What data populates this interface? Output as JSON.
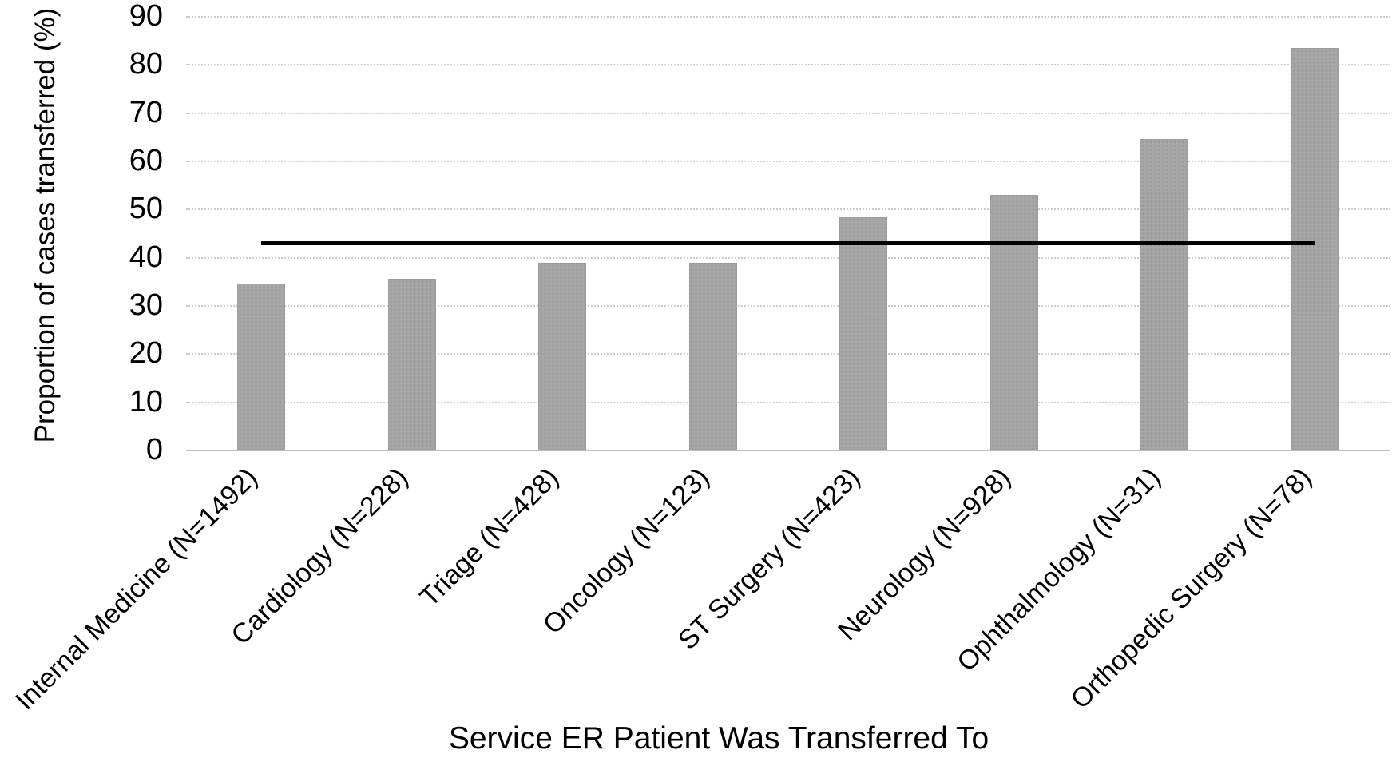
{
  "chart_data": {
    "type": "bar",
    "xlabel": "Service ER Patient Was Transferred To",
    "ylabel": "Proportion of cases transferred (%)",
    "categories": [
      "Internal Medicine (N=1492)",
      "Cardiology (N=228)",
      "Triage (N=428)",
      "Oncology (N=123)",
      "ST Surgery (N=423)",
      "Neurology (N=928)",
      "Ophthalmology (N=31)",
      "Orthopedic Surgery (N=78)"
    ],
    "values": [
      34.5,
      35.5,
      38.8,
      38.8,
      48.3,
      52.8,
      64.5,
      83.3
    ],
    "ylim": [
      0,
      90
    ],
    "yticks": [
      0,
      10,
      20,
      30,
      40,
      50,
      60,
      70,
      80,
      90
    ],
    "reference_line": {
      "value": 43,
      "color": "#000000",
      "span": "first-bar-center-to-last-bar-center"
    },
    "bar_color": "#a7a7a7",
    "gridline_color": "#cccccc",
    "grid": "horizontal-dotted",
    "legend": "none"
  }
}
